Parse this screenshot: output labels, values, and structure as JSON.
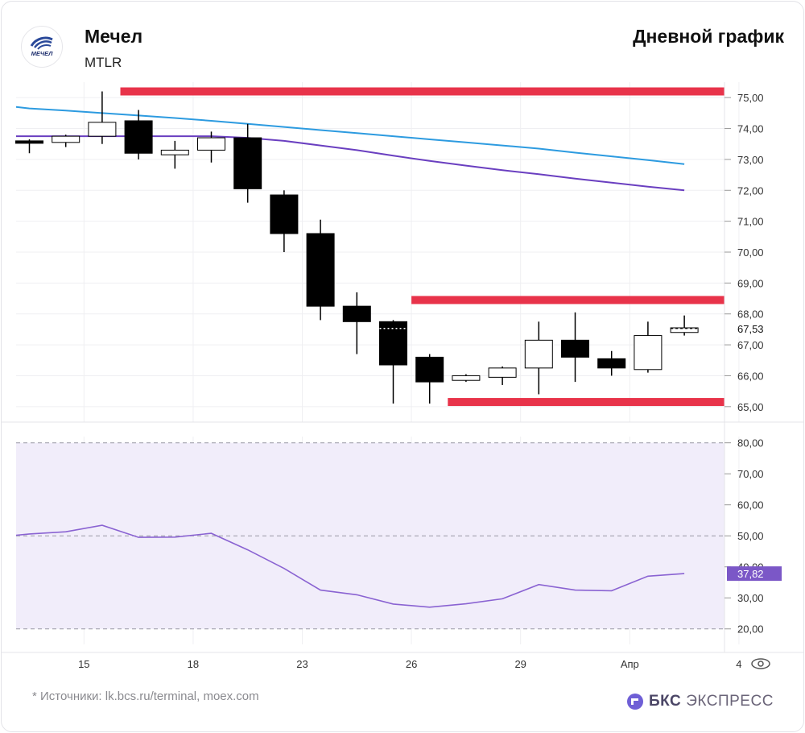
{
  "header": {
    "company": "Мечел",
    "ticker": "MTLR",
    "chart_title": "Дневной график",
    "logo_text": "МЕЧЕЛ"
  },
  "footer": {
    "source_note": "* Источники: lk.bcs.ru/terminal, moex.com",
    "brand_short": "БКС",
    "brand_name": "ЭКСПРЕСС"
  },
  "colors": {
    "level_line": "#e8334a",
    "ma_fast": "#2d9be0",
    "ma_slow": "#6a3fc0",
    "rsi_line": "#8a63d2",
    "rsi_band": "#f1edfa",
    "rsi_tag": "#7b57c7",
    "candle_down": "#000000",
    "candle_up_fill": "#ffffff"
  },
  "chart_data": [
    {
      "type": "candlestick",
      "x_ticks": [
        {
          "i": 1.5,
          "label": "15"
        },
        {
          "i": 4.5,
          "label": "18"
        },
        {
          "i": 7.5,
          "label": "23"
        },
        {
          "i": 10.5,
          "label": "26"
        },
        {
          "i": 13.5,
          "label": "29"
        },
        {
          "i": 16.5,
          "label": "Апр"
        },
        {
          "i": 19.5,
          "label": "4"
        }
      ],
      "candles": [
        {
          "o": 73.6,
          "h": 73.65,
          "l": 73.2,
          "c": 73.55
        },
        {
          "o": 73.55,
          "h": 73.8,
          "l": 73.4,
          "c": 73.75
        },
        {
          "o": 73.75,
          "h": 75.2,
          "l": 73.5,
          "c": 74.2
        },
        {
          "o": 74.25,
          "h": 74.6,
          "l": 73.0,
          "c": 73.2
        },
        {
          "o": 73.15,
          "h": 73.6,
          "l": 72.7,
          "c": 73.3
        },
        {
          "o": 73.3,
          "h": 73.9,
          "l": 72.9,
          "c": 73.7
        },
        {
          "o": 73.7,
          "h": 74.15,
          "l": 71.6,
          "c": 72.05
        },
        {
          "o": 71.85,
          "h": 72.0,
          "l": 70.0,
          "c": 70.6
        },
        {
          "o": 70.6,
          "h": 71.05,
          "l": 67.8,
          "c": 68.25
        },
        {
          "o": 68.25,
          "h": 68.7,
          "l": 66.7,
          "c": 67.75
        },
        {
          "o": 67.75,
          "h": 67.8,
          "l": 65.1,
          "c": 66.35
        },
        {
          "o": 66.6,
          "h": 66.7,
          "l": 65.1,
          "c": 65.8
        },
        {
          "o": 65.85,
          "h": 66.05,
          "l": 65.8,
          "c": 66.0
        },
        {
          "o": 65.95,
          "h": 66.3,
          "l": 65.7,
          "c": 66.25
        },
        {
          "o": 66.25,
          "h": 67.75,
          "l": 65.4,
          "c": 67.15
        },
        {
          "o": 67.15,
          "h": 68.05,
          "l": 65.8,
          "c": 66.6
        },
        {
          "o": 66.55,
          "h": 66.8,
          "l": 66.0,
          "c": 66.25
        },
        {
          "o": 66.2,
          "h": 67.75,
          "l": 66.1,
          "c": 67.3
        },
        {
          "o": 67.4,
          "h": 67.95,
          "l": 67.3,
          "c": 67.55
        }
      ],
      "ma_fast": [
        74.65,
        74.58,
        74.5,
        74.42,
        74.34,
        74.25,
        74.15,
        74.05,
        73.95,
        73.85,
        73.75,
        73.65,
        73.55,
        73.45,
        73.35,
        73.22,
        73.1,
        72.98,
        72.85
      ],
      "ma_slow": [
        73.75,
        73.75,
        73.75,
        73.75,
        73.75,
        73.75,
        73.7,
        73.6,
        73.45,
        73.3,
        73.12,
        72.95,
        72.8,
        72.65,
        72.52,
        72.38,
        72.25,
        72.12,
        72.0
      ],
      "levels": [
        {
          "name": "resistance-top",
          "y": 75.2,
          "from": 2.5
        },
        {
          "name": "resistance-mid",
          "y": 68.45,
          "from": 10.5
        },
        {
          "name": "support",
          "y": 65.15,
          "from": 11.5
        }
      ],
      "last_price": {
        "value": 67.53,
        "label": "67,53"
      },
      "y_axis": {
        "min": 64.5,
        "max": 75.5,
        "ticks": [
          {
            "v": 75,
            "label": "75,00"
          },
          {
            "v": 74,
            "label": "74,00"
          },
          {
            "v": 73,
            "label": "73,00"
          },
          {
            "v": 72,
            "label": "72,00"
          },
          {
            "v": 71,
            "label": "71,00"
          },
          {
            "v": 70,
            "label": "70,00"
          },
          {
            "v": 69,
            "label": "69,00"
          },
          {
            "v": 68,
            "label": "68,00"
          },
          {
            "v": 67,
            "label": "67,00"
          },
          {
            "v": 66,
            "label": "66,00"
          },
          {
            "v": 65,
            "label": "65,00"
          }
        ]
      },
      "grid": true
    },
    {
      "type": "line",
      "series_values": [
        50.6,
        51.3,
        53.4,
        49.5,
        49.6,
        50.8,
        45.5,
        39.5,
        32.5,
        31.0,
        28.0,
        27.0,
        28.1,
        29.7,
        34.3,
        32.5,
        32.3,
        37.0,
        37.82
      ],
      "y_axis": {
        "min": 15,
        "max": 82,
        "ticks": [
          {
            "v": 80,
            "label": "80,00"
          },
          {
            "v": 70,
            "label": "70,00"
          },
          {
            "v": 60,
            "label": "60,00"
          },
          {
            "v": 50,
            "label": "50,00"
          },
          {
            "v": 40,
            "label": "40,00"
          },
          {
            "v": 30,
            "label": "30,00"
          },
          {
            "v": 20,
            "label": "20,00"
          }
        ]
      },
      "band": [
        20,
        80
      ],
      "dashed_levels": [
        80,
        50,
        20
      ],
      "last_value": {
        "value": 37.82,
        "label": "37,82"
      }
    }
  ]
}
